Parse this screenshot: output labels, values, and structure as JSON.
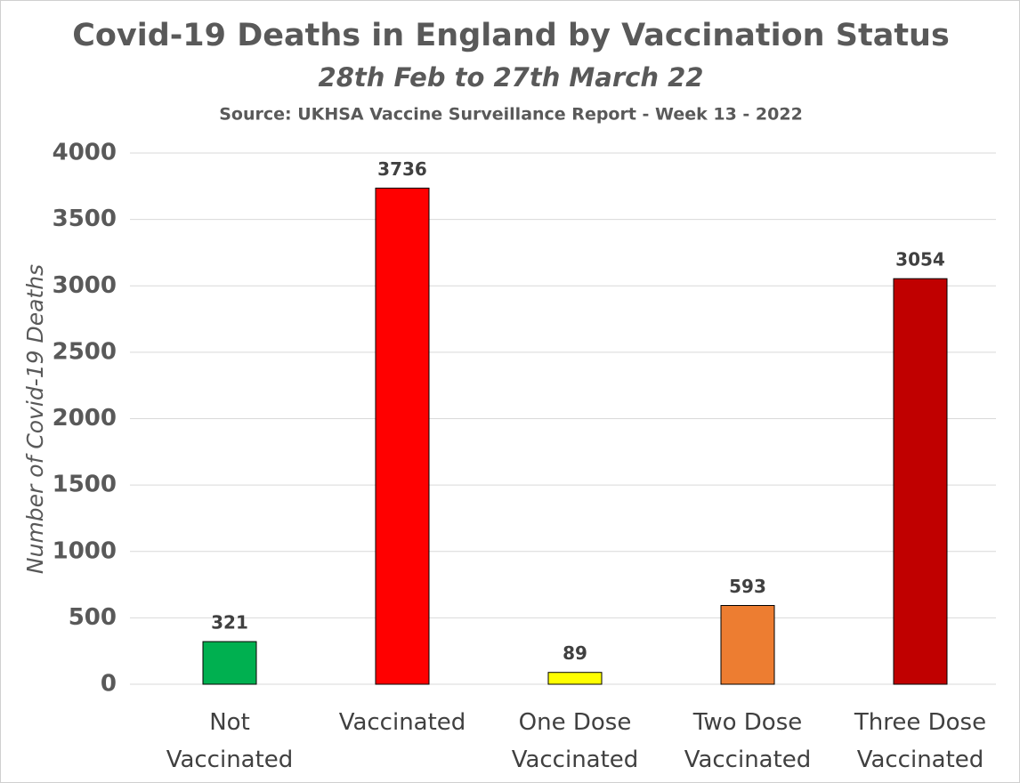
{
  "chart_data": {
    "type": "bar",
    "title": "Covid-19 Deaths in England by Vaccination Status",
    "subtitle": "28th Feb to 27th March 22",
    "source": "Source: UKHSA Vaccine Surveillance Report - Week 13 - 2022",
    "y_label": "Number of Covid-19 Deaths",
    "categories": [
      "Not Vaccinated",
      "Vaccinated",
      "One Dose Vaccinated",
      "Two Dose Vaccinated",
      "Three Dose Vaccinated"
    ],
    "values": [
      321,
      3736,
      89,
      593,
      3054
    ],
    "colors": [
      "#00b050",
      "#ff0000",
      "#ffff00",
      "#ed7d31",
      "#c00000"
    ],
    "ylim": [
      0,
      4000
    ],
    "yticks": [
      0,
      500,
      1000,
      1500,
      2000,
      2500,
      3000,
      3500,
      4000
    ],
    "grid": true
  }
}
